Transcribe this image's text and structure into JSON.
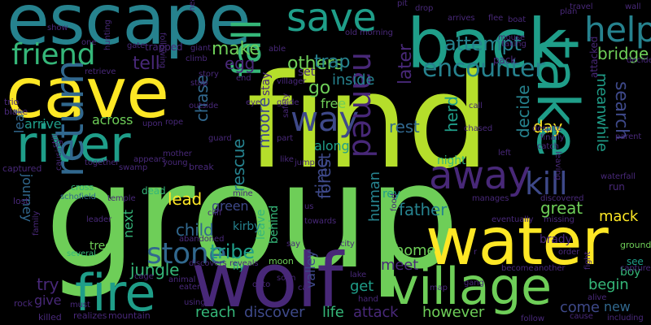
{
  "palette": {
    "lime": "#b5de2b",
    "yellow": "#fde725",
    "green": "#35b779",
    "lightgreen": "#6ece58",
    "teal": "#1f9e89",
    "cyan": "#26828e",
    "blue": "#31688e",
    "indigo": "#3e4989",
    "purple": "#482878",
    "dark": "#440154"
  },
  "words": [
    {
      "text": "find",
      "color": "lime"
    },
    {
      "text": "group",
      "color": "lightgreen"
    },
    {
      "text": "escape",
      "color": "cyan"
    },
    {
      "text": "cave",
      "color": "yellow"
    },
    {
      "text": "back",
      "color": "teal"
    },
    {
      "text": "water",
      "color": "yellow"
    },
    {
      "text": "wolf",
      "color": "purple"
    },
    {
      "text": "take",
      "color": "teal"
    },
    {
      "text": "village",
      "color": "lightgreen"
    },
    {
      "text": "river",
      "color": "teal"
    },
    {
      "text": "fire",
      "color": "teal"
    },
    {
      "text": "return",
      "color": "blue"
    },
    {
      "text": "save",
      "color": "teal"
    },
    {
      "text": "friend",
      "color": "green"
    },
    {
      "text": "fall",
      "color": "green"
    },
    {
      "text": "away",
      "color": "purple"
    },
    {
      "text": "help",
      "color": "cyan"
    },
    {
      "text": "encounter",
      "color": "cyan"
    },
    {
      "text": "way",
      "color": "indigo"
    },
    {
      "text": "named",
      "color": "purple"
    },
    {
      "text": "kill",
      "color": "indigo"
    },
    {
      "text": "stone",
      "color": "blue"
    },
    {
      "text": "attempt",
      "color": "cyan"
    },
    {
      "text": "search",
      "color": "indigo"
    },
    {
      "text": "make",
      "color": "lightgreen"
    },
    {
      "text": "others",
      "color": "lightgreen"
    },
    {
      "text": "tell",
      "color": "purple"
    },
    {
      "text": "egg",
      "color": "purple"
    },
    {
      "text": "trap",
      "color": "cyan"
    },
    {
      "text": "bridge",
      "color": "lightgreen"
    },
    {
      "text": "go",
      "color": "lightgreen"
    },
    {
      "text": "inside",
      "color": "cyan"
    },
    {
      "text": "later",
      "color": "purple"
    },
    {
      "text": "chase",
      "color": "blue"
    },
    {
      "text": "rescue",
      "color": "cyan"
    },
    {
      "text": "moore",
      "color": "indigo"
    },
    {
      "text": "decide",
      "color": "cyan"
    },
    {
      "text": "meanwhile",
      "color": "teal"
    },
    {
      "text": "day",
      "color": "yellow"
    },
    {
      "text": "herd",
      "color": "teal"
    },
    {
      "text": "arrive",
      "color": "teal"
    },
    {
      "text": "across",
      "color": "lightgreen"
    },
    {
      "text": "rest",
      "color": "blue"
    },
    {
      "text": "free",
      "color": "lightgreen"
    },
    {
      "text": "along",
      "color": "teal"
    },
    {
      "text": "forest",
      "color": "indigo"
    },
    {
      "text": "time",
      "color": "indigo"
    },
    {
      "text": "father",
      "color": "cyan"
    },
    {
      "text": "great",
      "color": "lightgreen"
    },
    {
      "text": "journey",
      "color": "blue"
    },
    {
      "text": "lead",
      "color": "yellow"
    },
    {
      "text": "human",
      "color": "cyan"
    },
    {
      "text": "child",
      "color": "blue"
    },
    {
      "text": "next",
      "color": "green"
    },
    {
      "text": "jungle",
      "color": "green"
    },
    {
      "text": "tribe",
      "color": "teal"
    },
    {
      "text": "leave",
      "color": "green"
    },
    {
      "text": "behind",
      "color": "green"
    },
    {
      "text": "green",
      "color": "indigo"
    },
    {
      "text": "kirby",
      "color": "cyan"
    },
    {
      "text": "home",
      "color": "lightgreen"
    },
    {
      "text": "mack",
      "color": "yellow"
    },
    {
      "text": "meet",
      "color": "purple"
    },
    {
      "text": "try",
      "color": "purple"
    },
    {
      "text": "give",
      "color": "purple"
    },
    {
      "text": "valley",
      "color": "indigo"
    },
    {
      "text": "get",
      "color": "teal"
    },
    {
      "text": "begin",
      "color": "green"
    },
    {
      "text": "come",
      "color": "indigo"
    },
    {
      "text": "new",
      "color": "blue"
    },
    {
      "text": "reach",
      "color": "green"
    },
    {
      "text": "discover",
      "color": "indigo"
    },
    {
      "text": "life",
      "color": "green"
    },
    {
      "text": "attack",
      "color": "purple"
    },
    {
      "text": "however",
      "color": "lightgreen"
    },
    {
      "text": "stay",
      "color": "purple"
    },
    {
      "text": "set",
      "color": "purple"
    },
    {
      "text": "night",
      "color": "green"
    },
    {
      "text": "dead",
      "color": "green"
    },
    {
      "text": "fly",
      "color": "teal"
    },
    {
      "text": "rey",
      "color": "teal"
    },
    {
      "text": "brady",
      "color": "purple"
    },
    {
      "text": "moon",
      "color": "lightgreen"
    },
    {
      "text": "ground",
      "color": "lightgreen"
    },
    {
      "text": "see",
      "color": "teal"
    },
    {
      "text": "boy",
      "color": "green"
    },
    {
      "text": "tree",
      "color": "lightgreen"
    },
    {
      "text": "leaf",
      "color": "blue"
    },
    {
      "text": "trio",
      "color": "purple"
    },
    {
      "text": "blake",
      "color": "purple"
    },
    {
      "text": "captured",
      "color": "purple"
    },
    {
      "text": "lost",
      "color": "purple"
    },
    {
      "text": "cross",
      "color": "green"
    },
    {
      "text": "schofield",
      "color": "blue"
    },
    {
      "text": "several",
      "color": "green"
    },
    {
      "text": "mountain",
      "color": "purple"
    },
    {
      "text": "realizes",
      "color": "purple"
    },
    {
      "text": "killed",
      "color": "purple"
    },
    {
      "text": "rock",
      "color": "purple"
    },
    {
      "text": "family",
      "color": "purple"
    },
    {
      "text": "still",
      "color": "purple"
    },
    {
      "text": "causing",
      "color": "purple"
    },
    {
      "text": "together",
      "color": "purple"
    },
    {
      "text": "swamp",
      "color": "purple"
    },
    {
      "text": "appears",
      "color": "purple"
    },
    {
      "text": "young",
      "color": "purple"
    },
    {
      "text": "mother",
      "color": "purple"
    },
    {
      "text": "break",
      "color": "purple"
    },
    {
      "text": "temple",
      "color": "purple"
    },
    {
      "text": "cliff",
      "color": "purple"
    },
    {
      "text": "leader",
      "color": "purple"
    },
    {
      "text": "abandoned",
      "color": "purple"
    },
    {
      "text": "cage",
      "color": "purple"
    },
    {
      "text": "animal",
      "color": "purple"
    },
    {
      "text": "eaten",
      "color": "purple"
    },
    {
      "text": "discovers",
      "color": "purple"
    },
    {
      "text": "reveals",
      "color": "purple"
    },
    {
      "text": "using",
      "color": "purple"
    },
    {
      "text": "must",
      "color": "purple"
    },
    {
      "text": "outside",
      "color": "purple"
    },
    {
      "text": "stop",
      "color": "purple"
    },
    {
      "text": "rope",
      "color": "purple"
    },
    {
      "text": "story",
      "color": "purple"
    },
    {
      "text": "climb",
      "color": "purple"
    },
    {
      "text": "giant",
      "color": "purple"
    },
    {
      "text": "end",
      "color": "purple"
    },
    {
      "text": "villager",
      "color": "purple"
    },
    {
      "text": "eye",
      "color": "purple"
    },
    {
      "text": "guide",
      "color": "purple"
    },
    {
      "text": "part",
      "color": "purple"
    },
    {
      "text": "safety",
      "color": "purple"
    },
    {
      "text": "like",
      "color": "purple"
    },
    {
      "text": "jump",
      "color": "purple"
    },
    {
      "text": "mine",
      "color": "purple"
    },
    {
      "text": "guard",
      "color": "purple"
    },
    {
      "text": "us",
      "color": "purple"
    },
    {
      "text": "towards",
      "color": "purple"
    },
    {
      "text": "say",
      "color": "purple"
    },
    {
      "text": "city",
      "color": "purple"
    },
    {
      "text": "onto",
      "color": "purple"
    },
    {
      "text": "soon",
      "color": "purple"
    },
    {
      "text": "cat",
      "color": "purple"
    },
    {
      "text": "lake",
      "color": "purple"
    },
    {
      "text": "hand",
      "color": "purple"
    },
    {
      "text": "food",
      "color": "purple"
    },
    {
      "text": "map",
      "color": "purple"
    },
    {
      "text": "gang",
      "color": "purple"
    },
    {
      "text": "become",
      "color": "purple"
    },
    {
      "text": "another",
      "color": "purple"
    },
    {
      "text": "alive",
      "color": "purple"
    },
    {
      "text": "follow",
      "color": "purple"
    },
    {
      "text": "cause",
      "color": "purple"
    },
    {
      "text": "including",
      "color": "purple"
    },
    {
      "text": "order",
      "color": "purple"
    },
    {
      "text": "capture",
      "color": "purple"
    },
    {
      "text": "fight",
      "color": "purple"
    },
    {
      "text": "missing",
      "color": "purple"
    },
    {
      "text": "eventually",
      "color": "purple"
    },
    {
      "text": "manages",
      "color": "purple"
    },
    {
      "text": "discovered",
      "color": "purple"
    },
    {
      "text": "waterfall",
      "color": "purple"
    },
    {
      "text": "leaving",
      "color": "purple"
    },
    {
      "text": "run",
      "color": "purple"
    },
    {
      "text": "left",
      "color": "purple"
    },
    {
      "text": "finally",
      "color": "purple"
    },
    {
      "text": "catch",
      "color": "purple"
    },
    {
      "text": "despite",
      "color": "purple"
    },
    {
      "text": "parent",
      "color": "purple"
    },
    {
      "text": "attacked",
      "color": "purple"
    },
    {
      "text": "chased",
      "color": "purple"
    },
    {
      "text": "call",
      "color": "purple"
    },
    {
      "text": "decides",
      "color": "purple"
    },
    {
      "text": "pack",
      "color": "purple"
    },
    {
      "text": "taking",
      "color": "purple"
    },
    {
      "text": "mouse",
      "color": "purple"
    },
    {
      "text": "plan",
      "color": "purple"
    },
    {
      "text": "flee",
      "color": "purple"
    },
    {
      "text": "boat",
      "color": "purple"
    },
    {
      "text": "arrives",
      "color": "purple"
    },
    {
      "text": "drop",
      "color": "purple"
    },
    {
      "text": "travel",
      "color": "purple"
    },
    {
      "text": "wall",
      "color": "purple"
    },
    {
      "text": "pit",
      "color": "purple"
    },
    {
      "text": "morning",
      "color": "purple"
    },
    {
      "text": "old",
      "color": "purple"
    },
    {
      "text": "able",
      "color": "purple"
    },
    {
      "text": "near",
      "color": "purple"
    },
    {
      "text": "following",
      "color": "purple"
    },
    {
      "text": "gate",
      "color": "purple"
    },
    {
      "text": "hunting",
      "color": "purple"
    },
    {
      "text": "one",
      "color": "purple"
    },
    {
      "text": "show",
      "color": "purple"
    },
    {
      "text": "retrieve",
      "color": "purple"
    },
    {
      "text": "trapped",
      "color": "purple"
    },
    {
      "text": "upon",
      "color": "purple"
    },
    {
      "text": "r",
      "color": "purple"
    }
  ]
}
